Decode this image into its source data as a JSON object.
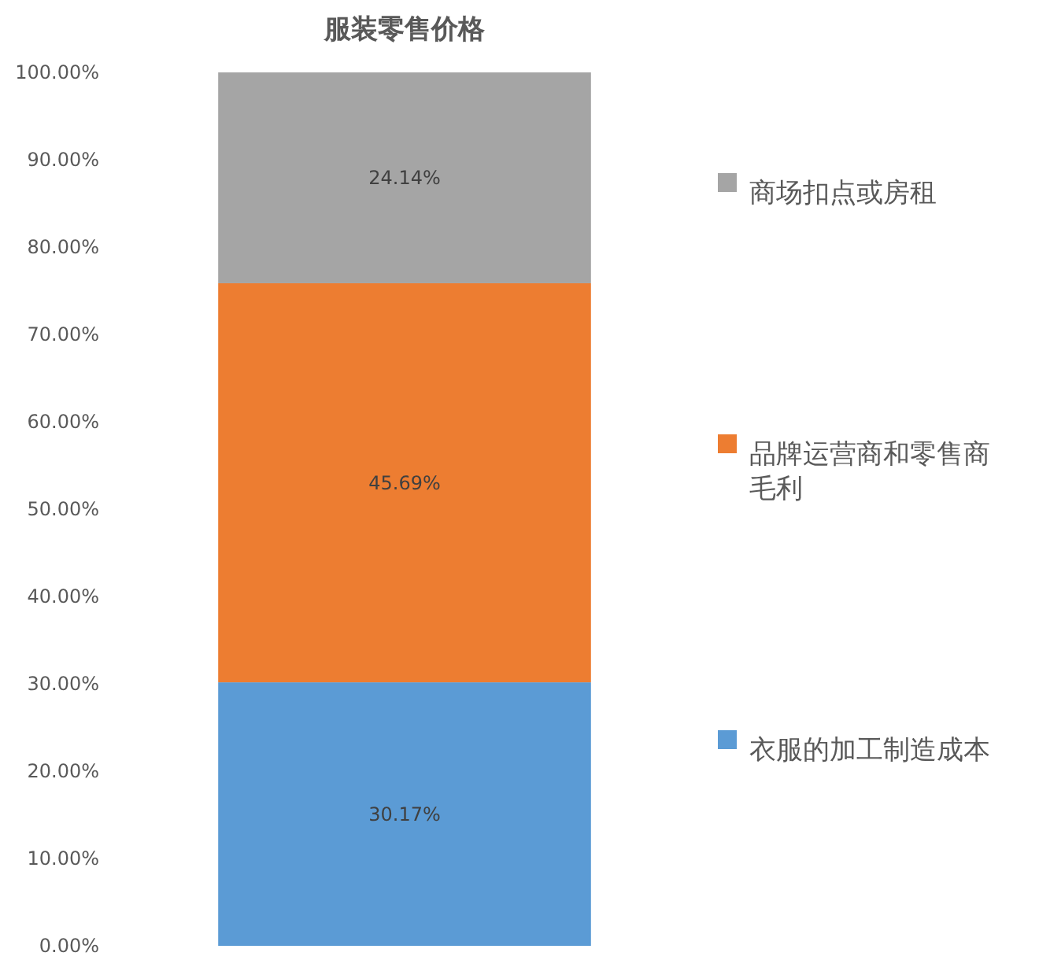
{
  "chart_data": {
    "type": "bar",
    "title": "服装零售价格",
    "stacked": true,
    "categories": [
      null
    ],
    "series": [
      {
        "name": "衣服的加工制造成本",
        "color": "#5b9bd5",
        "values": [
          30.17
        ],
        "value_labels": [
          "30.17%"
        ]
      },
      {
        "name": "品牌运营商和零售商毛利",
        "color": "#ed7d31",
        "values": [
          45.69
        ],
        "value_labels": [
          "45.69%"
        ]
      },
      {
        "name": "商场扣点或房租",
        "color": "#a5a5a5",
        "values": [
          24.14
        ],
        "value_labels": [
          "24.14%"
        ]
      }
    ],
    "ylim": [
      0,
      100
    ],
    "yticks": [
      {
        "value": 0,
        "label": "0.00%"
      },
      {
        "value": 10,
        "label": "10.00%"
      },
      {
        "value": 20,
        "label": "20.00%"
      },
      {
        "value": 30,
        "label": "30.00%"
      },
      {
        "value": 40,
        "label": "40.00%"
      },
      {
        "value": 50,
        "label": "50.00%"
      },
      {
        "value": 60,
        "label": "60.00%"
      },
      {
        "value": 70,
        "label": "70.00%"
      },
      {
        "value": 80,
        "label": "80.00%"
      },
      {
        "value": 90,
        "label": "90.00%"
      },
      {
        "value": 100,
        "label": "100.00%"
      }
    ],
    "legend": "right",
    "grid": false
  }
}
